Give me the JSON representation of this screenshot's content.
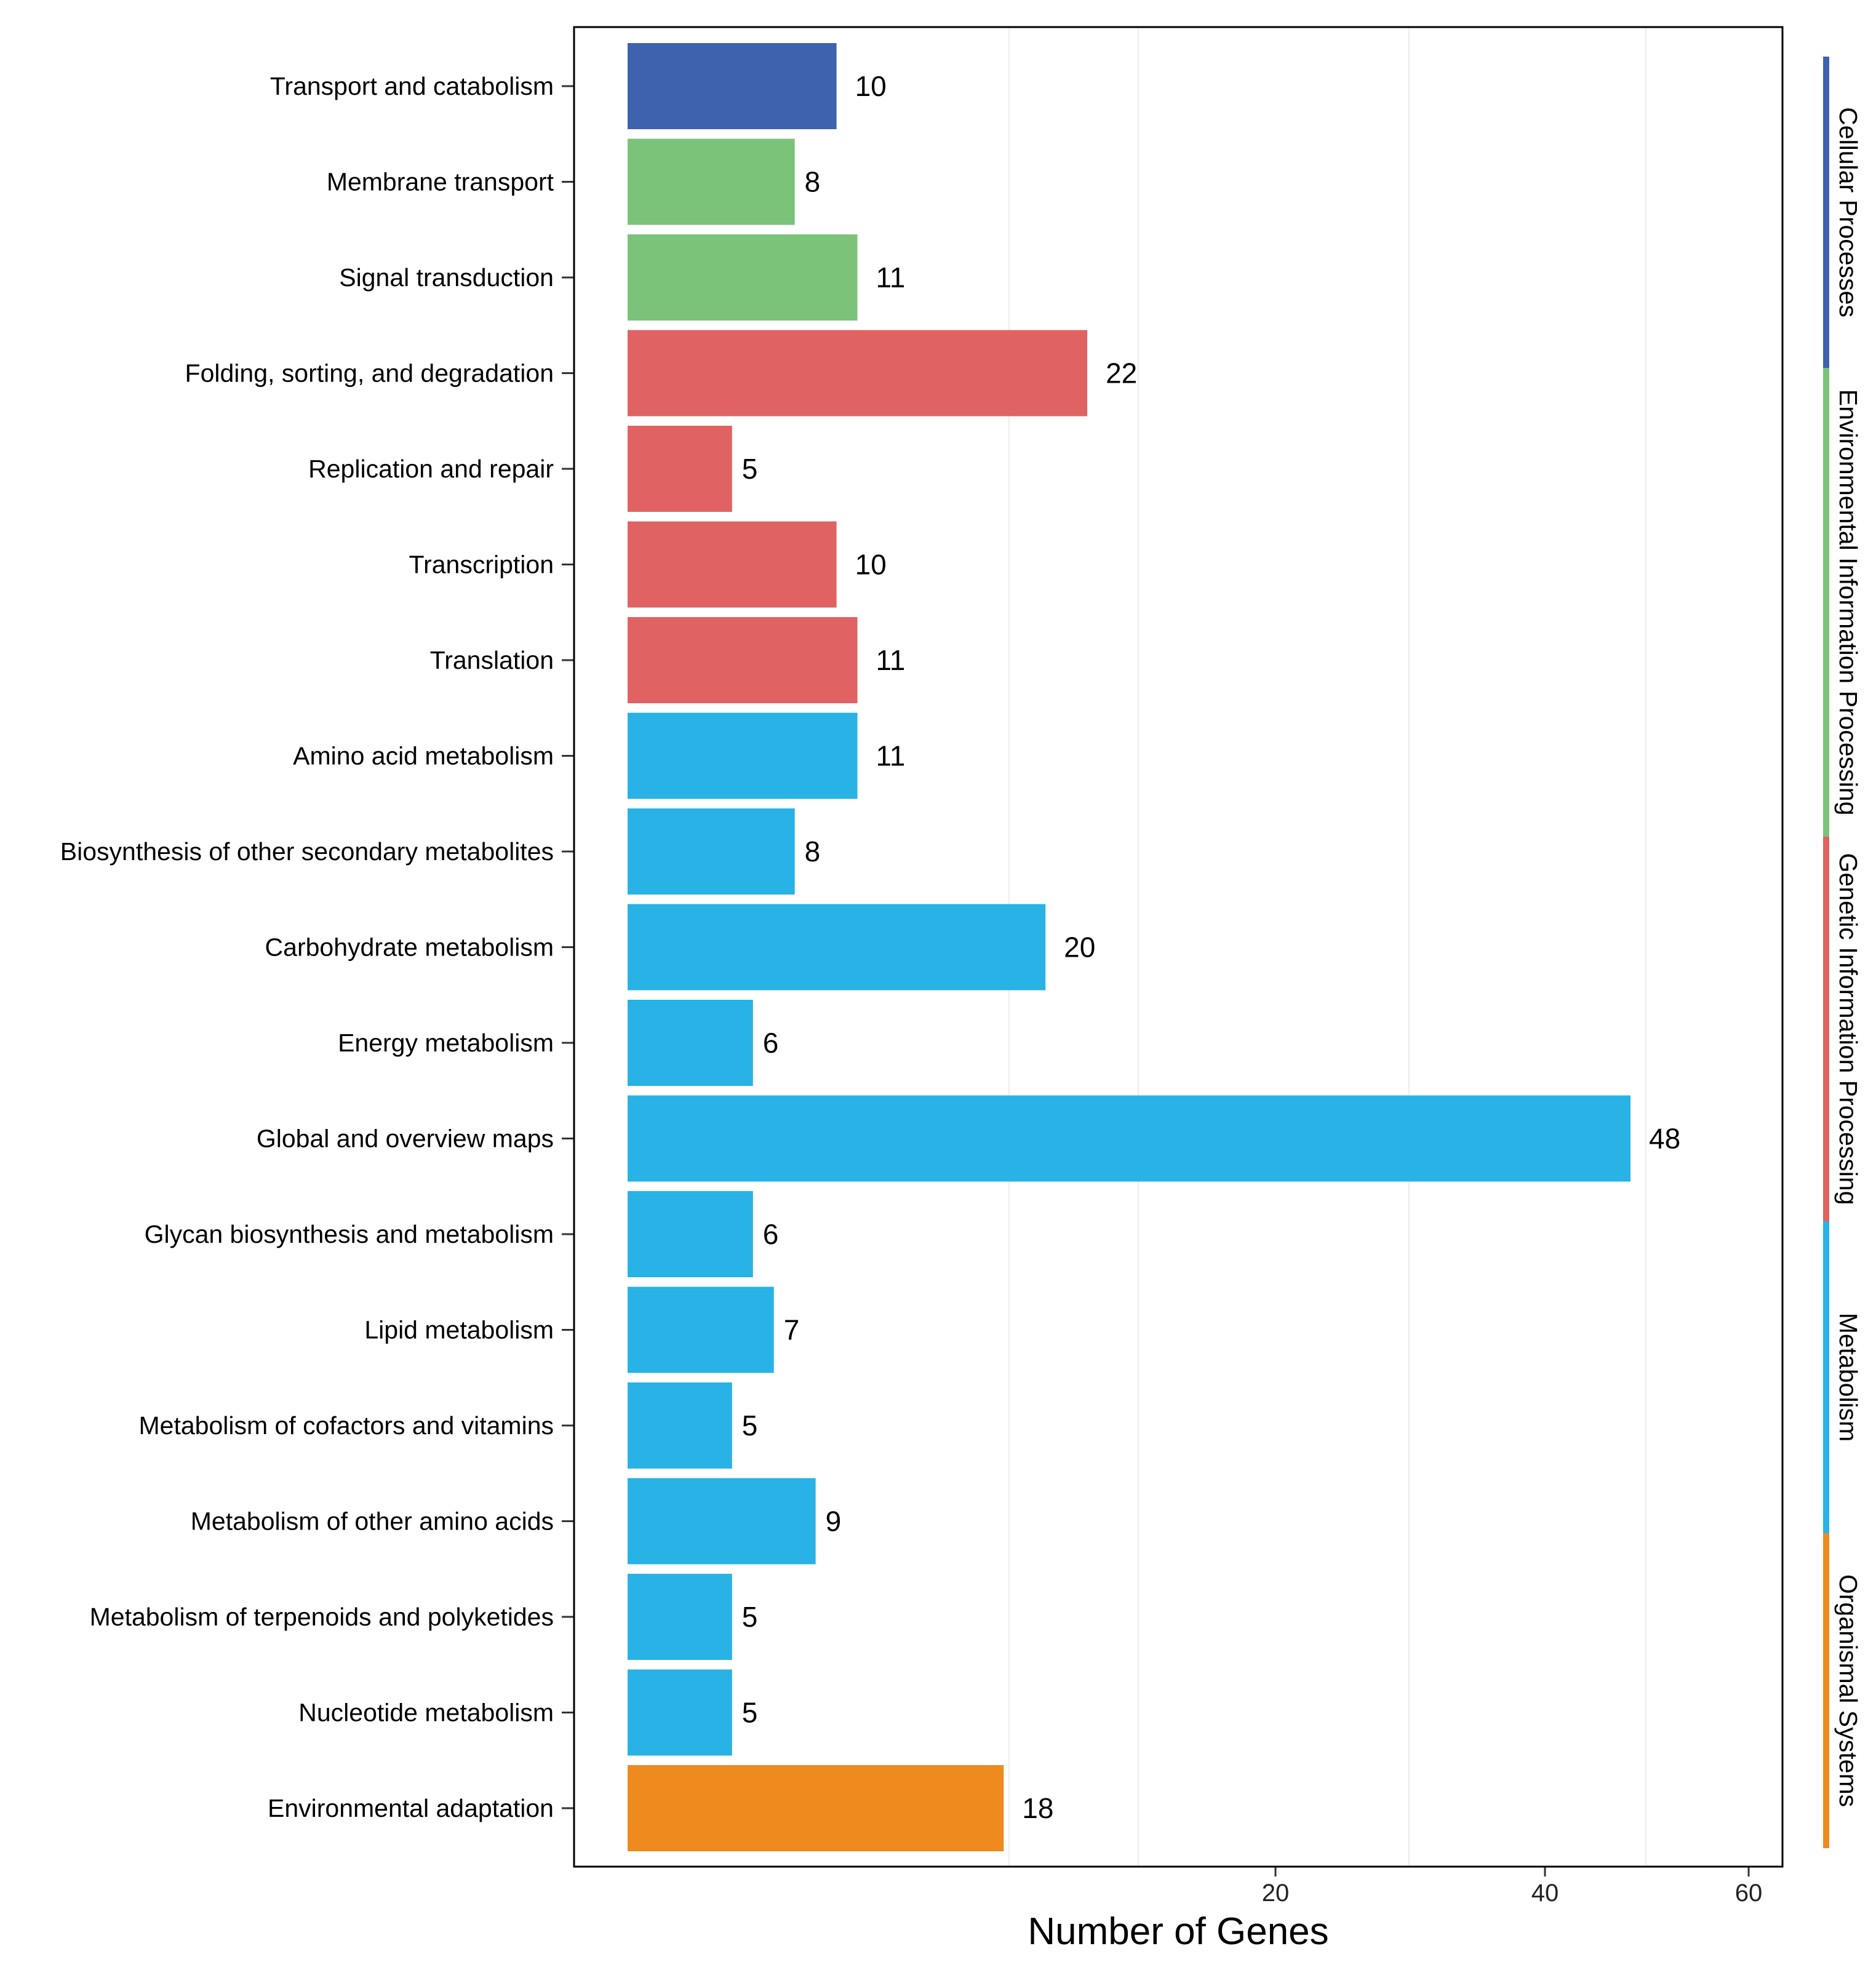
{
  "chart_data": {
    "type": "bar",
    "orientation": "horizontal",
    "xlabel": "Number of Genes",
    "ylabel": "",
    "x_ticks": [
      20,
      40,
      60
    ],
    "categories": [
      "Transport and catabolism",
      "Membrane transport",
      "Signal transduction",
      "Folding, sorting, and degradation",
      "Replication and repair",
      "Transcription",
      "Translation",
      "Amino acid metabolism",
      "Biosynthesis of other secondary metabolites",
      "Carbohydrate metabolism",
      "Energy metabolism",
      "Global and overview maps",
      "Glycan biosynthesis and metabolism",
      "Lipid metabolism",
      "Metabolism of cofactors and vitamins",
      "Metabolism of other amino acids",
      "Metabolism of terpenoids and polyketides",
      "Nucleotide metabolism",
      "Environmental adaptation"
    ],
    "values": [
      10,
      8,
      11,
      22,
      5,
      10,
      11,
      11,
      8,
      20,
      6,
      48,
      6,
      7,
      5,
      9,
      5,
      5,
      18
    ],
    "value_labels": [
      "10",
      "8",
      "11",
      "22",
      "5",
      "10",
      "11",
      "11",
      "8",
      "20",
      "6",
      "48",
      "6",
      "7",
      "5",
      "9",
      "5",
      "5",
      "18"
    ],
    "groups": [
      {
        "name": "Cellular Processes",
        "color": "#3F62AE",
        "categories": [
          "Transport and catabolism"
        ]
      },
      {
        "name": "Environmental Information Processing",
        "color": "#7BC379",
        "categories": [
          "Membrane transport",
          "Signal transduction"
        ]
      },
      {
        "name": "Genetic Information Processing",
        "color": "#E16262",
        "categories": [
          "Folding, sorting, and degradation",
          "Replication and repair",
          "Transcription",
          "Translation"
        ]
      },
      {
        "name": "Metabolism",
        "color": "#28B2E6",
        "categories": [
          "Amino acid metabolism",
          "Biosynthesis of other secondary metabolites",
          "Carbohydrate metabolism",
          "Energy metabolism",
          "Global and overview maps",
          "Glycan biosynthesis and metabolism",
          "Lipid metabolism",
          "Metabolism of cofactors and vitamins",
          "Metabolism of other amino acids",
          "Metabolism of terpenoids and polyketides",
          "Nucleotide metabolism"
        ]
      },
      {
        "name": "Organismal Systems",
        "color": "#EE8A1E",
        "categories": [
          "Environmental adaptation"
        ]
      }
    ],
    "legend_position": "right (vertical group strip)",
    "grid": true
  }
}
